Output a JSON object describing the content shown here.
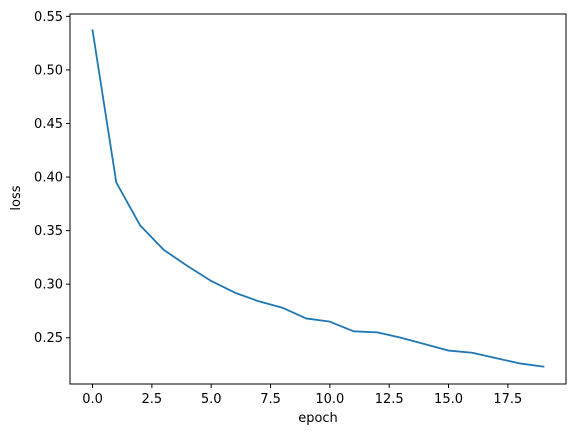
{
  "chart_data": {
    "type": "line",
    "xlabel": "epoch",
    "ylabel": "loss",
    "x": [
      0,
      1,
      2,
      3,
      4,
      5,
      6,
      7,
      8,
      9,
      10,
      11,
      12,
      13,
      14,
      15,
      16,
      17,
      18,
      19
    ],
    "values": [
      0.537,
      0.395,
      0.355,
      0.332,
      0.317,
      0.303,
      0.292,
      0.284,
      0.278,
      0.268,
      0.265,
      0.256,
      0.255,
      0.25,
      0.244,
      0.238,
      0.236,
      0.231,
      0.226,
      0.223
    ],
    "color": "#1f77b4",
    "xlim": [
      -0.95,
      19.95
    ],
    "xticks": [
      {
        "value": 0,
        "label": "0.0"
      },
      2.5,
      {
        "value": 5,
        "label": "5.0"
      },
      7.5,
      {
        "value": 10,
        "label": "10.0"
      },
      12.5,
      {
        "value": 15,
        "label": "15.0"
      },
      17.5
    ],
    "ylim": [
      0.2068,
      0.5522
    ],
    "yticks": [
      0.25,
      {
        "value": 0.3,
        "label": "0.30"
      },
      0.35,
      {
        "value": 0.4,
        "label": "0.40"
      },
      0.45,
      {
        "value": 0.5,
        "label": "0.50"
      },
      0.55
    ],
    "grid": false
  }
}
